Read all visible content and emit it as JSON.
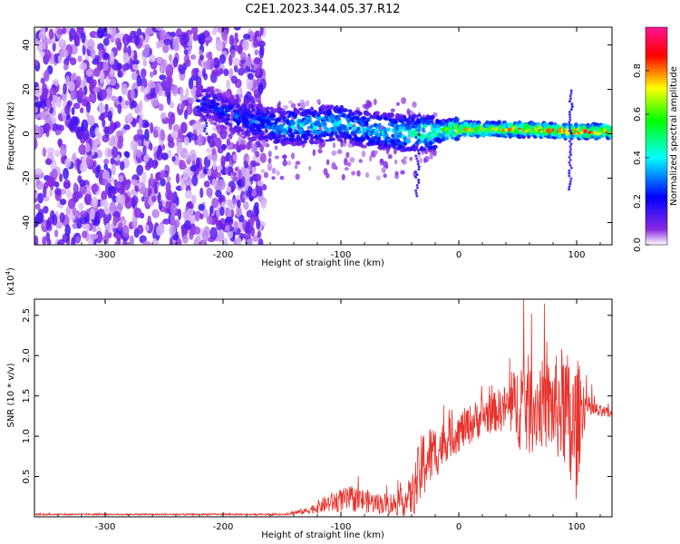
{
  "figure_title": "C2E1.2023.344.05.37.R12",
  "chart_data": [
    {
      "type": "heatmap",
      "title": "",
      "xlabel": "Height of straight line (km)",
      "ylabel": "Frequency (Hz)",
      "xlim": [
        -360,
        130
      ],
      "ylim": [
        -50,
        48
      ],
      "x_ticks": [
        -300,
        -200,
        -100,
        0,
        100
      ],
      "x_tick_labels": [
        "-300",
        "-200",
        "-100",
        "0",
        "100"
      ],
      "y_ticks": [
        -40,
        -20,
        0,
        20,
        40
      ],
      "y_tick_labels": [
        "-40",
        "-20",
        "0",
        "20",
        "40"
      ],
      "grid": false,
      "colorbar": {
        "label": "Normalized spectral amplitude",
        "range": [
          0,
          1
        ],
        "ticks": [
          0.0,
          0.2,
          0.4,
          0.6,
          0.8
        ],
        "tick_labels": [
          "0.0",
          "0.2",
          "0.4",
          "0.6",
          "0.8"
        ],
        "colors": [
          "#ffffff",
          "#8a2be2",
          "#0000ff",
          "#00ffff",
          "#00ff00",
          "#ffff00",
          "#ff0000",
          "#ff1493"
        ]
      },
      "ridge": {
        "description_values": "center frequency of the spectral band vs height",
        "x": [
          -215,
          -180,
          -150,
          -120,
          -100,
          -80,
          -60,
          -40,
          -20,
          0,
          50,
          100,
          130
        ],
        "center_hz": [
          14,
          6,
          3,
          4,
          5,
          2,
          1,
          0,
          1,
          2,
          2,
          1,
          1
        ],
        "amplitude": [
          0.25,
          0.3,
          0.4,
          0.45,
          0.45,
          0.4,
          0.45,
          0.5,
          0.6,
          0.75,
          0.85,
          0.9,
          0.9
        ]
      }
    },
    {
      "type": "line",
      "title": "",
      "xlabel": "Height of straight line (km)",
      "ylabel": "SNR (10 * v/v)",
      "y_multiplier": "(x10⁴)",
      "y_multiplier_base": "(x10",
      "y_multiplier_exp": "4",
      "y_multiplier_close": ")",
      "xlim": [
        -360,
        130
      ],
      "ylim": [
        0,
        27000
      ],
      "x_ticks": [
        -300,
        -200,
        -100,
        0,
        100
      ],
      "x_tick_labels": [
        "-300",
        "-200",
        "-100",
        "0",
        "100"
      ],
      "y_ticks": [
        5000,
        10000,
        15000,
        20000,
        25000
      ],
      "y_tick_labels": [
        "0.5",
        "1.0",
        "1.5",
        "2.0",
        "2.5"
      ],
      "grid": false,
      "series": [
        {
          "color": "#e8322c",
          "x": [
            -360,
            -300,
            -250,
            -200,
            -150,
            -130,
            -120,
            -110,
            -100,
            -90,
            -80,
            -70,
            -60,
            -50,
            -40,
            -35,
            -30,
            -25,
            -20,
            -10,
            0,
            10,
            20,
            30,
            40,
            50,
            55,
            60,
            70,
            80,
            90,
            95,
            100,
            105,
            110,
            120,
            130
          ],
          "y": [
            300,
            300,
            300,
            300,
            300,
            700,
            1200,
            1700,
            2000,
            2200,
            2000,
            1700,
            1600,
            1700,
            2500,
            4500,
            6500,
            7500,
            8000,
            9500,
            10500,
            11500,
            12500,
            13000,
            13500,
            14000,
            14500,
            13500,
            14000,
            13500,
            13800,
            10000,
            11000,
            14000,
            13500,
            13000,
            12800
          ],
          "noise_amp": [
            100,
            100,
            100,
            100,
            100,
            400,
            800,
            1200,
            1500,
            1600,
            1500,
            1300,
            1400,
            1600,
            2500,
            4000,
            4500,
            4000,
            3500,
            2500,
            2500,
            2500,
            2500,
            2500,
            3000,
            5000,
            8000,
            6000,
            5500,
            6000,
            8000,
            9000,
            9000,
            4000,
            1500,
            800,
            600
          ]
        }
      ]
    }
  ]
}
